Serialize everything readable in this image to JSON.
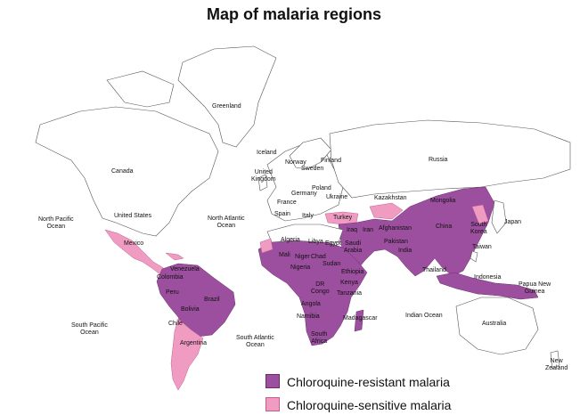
{
  "title": "Map of malaria regions",
  "colors": {
    "chloroquine_resistant": "#9c4f9e",
    "chloroquine_sensitive": "#f09bc2",
    "land": "#ffffff",
    "border": "#555555"
  },
  "legend": [
    {
      "label": "Chloroquine-resistant malaria",
      "color": "#9c4f9e"
    },
    {
      "label": "Chloroquine-sensitive malaria",
      "color": "#f09bc2"
    }
  ],
  "labels": {
    "greenland": "Greenland",
    "iceland": "Iceland",
    "norway": "Norway",
    "finland": "Finland",
    "sweden": "Sweden",
    "russia": "Russia",
    "canada": "Canada",
    "uk": "United\nKingdom",
    "poland": "Poland",
    "germany": "Germany",
    "ukraine": "Ukraine",
    "kazakhstan": "Kazakhstan",
    "mongolia": "Mongolia",
    "france": "France",
    "spain": "Spain",
    "italy": "Italy",
    "turkey": "Turkey",
    "north_pacific": "North Pacific\nOcean",
    "united_states": "United States",
    "north_atlantic": "North Atlantic\nOcean",
    "afghanistan": "Afghanistan",
    "iraq": "Iraq",
    "iran": "Iran",
    "china": "China",
    "south_korea": "South\nKorea",
    "japan": "Japan",
    "algeria": "Algeria",
    "libya": "Libya",
    "egypt": "Egypt",
    "saudi_arabia": "Saudi\nArabia",
    "pakistan": "Pakistan",
    "mexico": "Mexico",
    "taiwan": "Taiwan",
    "india": "India",
    "mali": "Mali",
    "niger": "Niger",
    "chad": "Chad",
    "venezuela": "Venezuela",
    "sudan": "Sudan",
    "nigeria": "Nigeria",
    "ethiopia": "Ethiopia",
    "colombia": "Colombia",
    "thailand": "Thailand",
    "dr_congo": "DR\nCongo",
    "kenya": "Kenya",
    "indonesia": "Indonesia",
    "papua": "Papua New\nGuinea",
    "peru": "Peru",
    "brazil": "Brazil",
    "tanzania": "Tanzania",
    "angola": "Angola",
    "bolivia": "Bolivia",
    "namibia": "Namibia",
    "madagascar": "Madagascar",
    "indian_ocean": "Indian Ocean",
    "south_pacific": "South Pacific\nOcean",
    "chile": "Chile",
    "australia": "Australia",
    "south_africa": "South\nAfrica",
    "south_atlantic": "South Atlantic\nOcean",
    "argentina": "Argentina",
    "new_zealand": "New\nZealand"
  }
}
